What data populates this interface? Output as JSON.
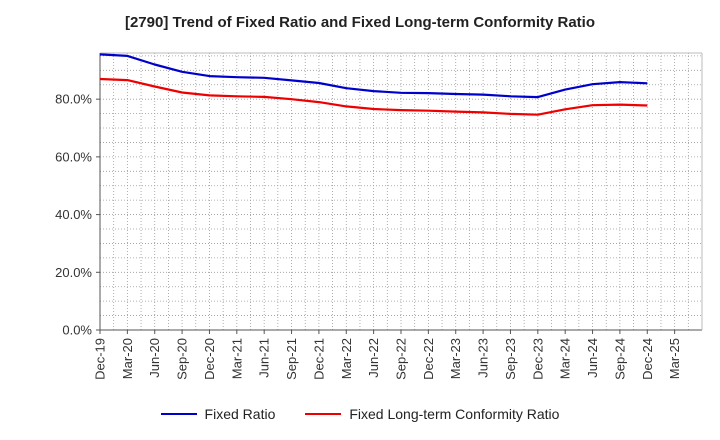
{
  "chart_data": {
    "type": "line",
    "title": "[2790]  Trend of Fixed Ratio and Fixed Long-term Conformity Ratio",
    "xlabel": "",
    "ylabel": "",
    "ylim": [
      0,
      96
    ],
    "yticks": [
      "0.0%",
      "20.0%",
      "40.0%",
      "60.0%",
      "80.0%"
    ],
    "ytick_values": [
      0,
      20,
      40,
      60,
      80
    ],
    "categories": [
      "Dec-19",
      "Mar-20",
      "Jun-20",
      "Sep-20",
      "Dec-20",
      "Mar-21",
      "Jun-21",
      "Sep-21",
      "Dec-21",
      "Mar-22",
      "Jun-22",
      "Sep-22",
      "Dec-22",
      "Mar-23",
      "Jun-23",
      "Sep-23",
      "Dec-23",
      "Mar-24",
      "Jun-24",
      "Sep-24",
      "Dec-24",
      "Mar-25"
    ],
    "grid": true,
    "legend_position": "bottom",
    "series": [
      {
        "name": "Fixed Ratio",
        "color": "#0000cc",
        "values": [
          95.5,
          95.0,
          92.0,
          89.5,
          88.0,
          87.6,
          87.4,
          86.5,
          85.6,
          83.8,
          82.8,
          82.2,
          82.1,
          81.8,
          81.6,
          81.0,
          80.7,
          83.3,
          85.2,
          85.9,
          85.5,
          null
        ]
      },
      {
        "name": "Fixed Long-term Conformity Ratio",
        "color": "#ee0000",
        "values": [
          87.0,
          86.6,
          84.4,
          82.3,
          81.3,
          81.0,
          80.8,
          80.0,
          79.0,
          77.5,
          76.6,
          76.2,
          76.0,
          75.7,
          75.4,
          74.9,
          74.6,
          76.5,
          77.9,
          78.1,
          77.8,
          null
        ]
      }
    ]
  }
}
